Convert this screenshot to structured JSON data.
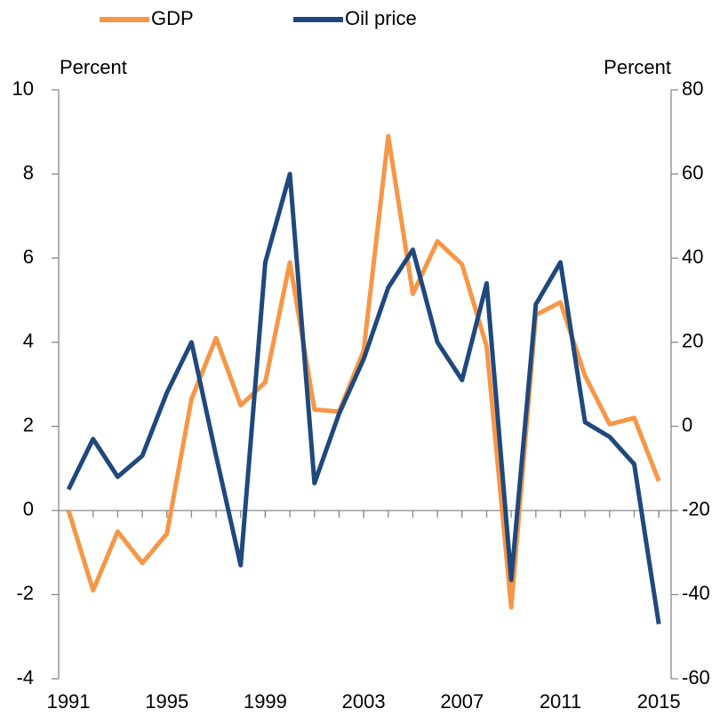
{
  "chart_data": {
    "type": "line",
    "x": [
      1991,
      1992,
      1993,
      1994,
      1995,
      1996,
      1997,
      1998,
      1999,
      2000,
      2001,
      2002,
      2003,
      2004,
      2005,
      2006,
      2007,
      2008,
      2009,
      2010,
      2011,
      2012,
      2013,
      2014,
      2015
    ],
    "series": [
      {
        "name": "GDP",
        "color": "#f79646",
        "values": [
          0,
          -1.9,
          -0.5,
          -1.25,
          -0.55,
          2.65,
          4.1,
          2.5,
          3.05,
          5.9,
          2.4,
          2.35,
          3.8,
          8.9,
          5.15,
          6.4,
          5.85,
          3.9,
          -2.3,
          4.65,
          4.95,
          3.2,
          2.05,
          2.2,
          0.7
        ]
      },
      {
        "name": "Oil price",
        "color": "#1f497d",
        "axis": "y2",
        "values": [
          -15,
          -3,
          -12,
          -7,
          8,
          20,
          -7,
          -33,
          39,
          60,
          -13.5,
          3,
          16,
          33,
          42,
          20,
          11,
          34,
          -36.5,
          29,
          39,
          1,
          -2.5,
          -9,
          -47
        ]
      }
    ],
    "ylabel": "Percent",
    "y2label": "Percent",
    "xlim": [
      1990.6,
      2015.5
    ],
    "xticks": [
      1991,
      1995,
      1999,
      2003,
      2007,
      2011,
      2015
    ],
    "ylim": [
      -4,
      10
    ],
    "yticks": [
      -4,
      -2,
      0,
      2,
      4,
      6,
      8,
      10
    ],
    "y2lim": [
      -60,
      80
    ],
    "y2ticks": [
      -60,
      -40,
      -20,
      0,
      20,
      40,
      60,
      80
    ]
  }
}
